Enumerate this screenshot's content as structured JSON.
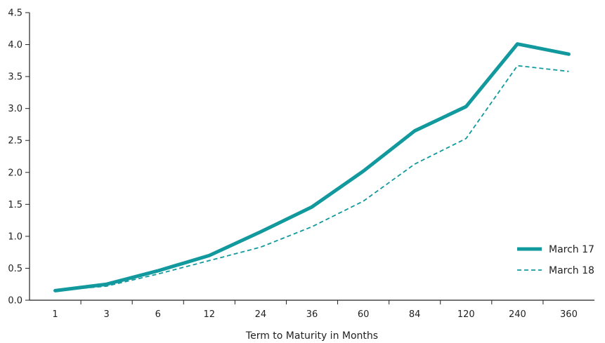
{
  "chart_data": {
    "type": "line",
    "title": "",
    "xlabel": "Term to Maturity in Months",
    "ylabel": "",
    "categories": [
      "1",
      "3",
      "6",
      "12",
      "24",
      "36",
      "60",
      "84",
      "120",
      "240",
      "360"
    ],
    "ylim": [
      0,
      4.5
    ],
    "yticks": [
      "0.0",
      "0.5",
      "1.0",
      "1.5",
      "2.0",
      "2.5",
      "3.0",
      "3.5",
      "4.0",
      "4.5"
    ],
    "grid": false,
    "legend_position": "bottom-right",
    "series": [
      {
        "name": "March 17",
        "style": "solid",
        "color": "#12999e",
        "values": [
          0.15,
          0.25,
          0.46,
          0.7,
          1.07,
          1.46,
          2.02,
          2.65,
          3.03,
          4.01,
          3.85
        ]
      },
      {
        "name": "March 18",
        "style": "dashed",
        "color": "#12999e",
        "values": [
          0.15,
          0.22,
          0.41,
          0.62,
          0.83,
          1.15,
          1.55,
          2.13,
          2.53,
          3.67,
          3.58
        ]
      }
    ]
  }
}
